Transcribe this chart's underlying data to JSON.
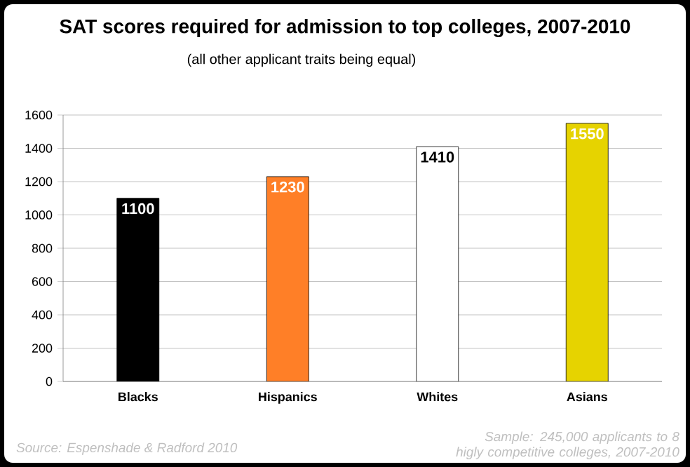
{
  "chart_data": {
    "type": "bar",
    "title": "SAT scores required for admission to top colleges, 2007-2010",
    "subtitle": "(all other applicant traits being equal)",
    "categories": [
      "Blacks",
      "Hispanics",
      "Whites",
      "Asians"
    ],
    "values": [
      1100,
      1230,
      1410,
      1550
    ],
    "colors": [
      "#000000",
      "#ff7f27",
      "#ffffff",
      "#e6d300"
    ],
    "ylim": [
      0,
      1600
    ],
    "yticks": [
      0,
      200,
      400,
      600,
      800,
      1000,
      1200,
      1400,
      1600
    ],
    "grid": "y",
    "data_labels": true,
    "annotations": [
      "Source: Espenshade & Radford 2010",
      "Sample: 245,000 applicants to 8 higly competitive colleges, 2007-2010"
    ]
  }
}
